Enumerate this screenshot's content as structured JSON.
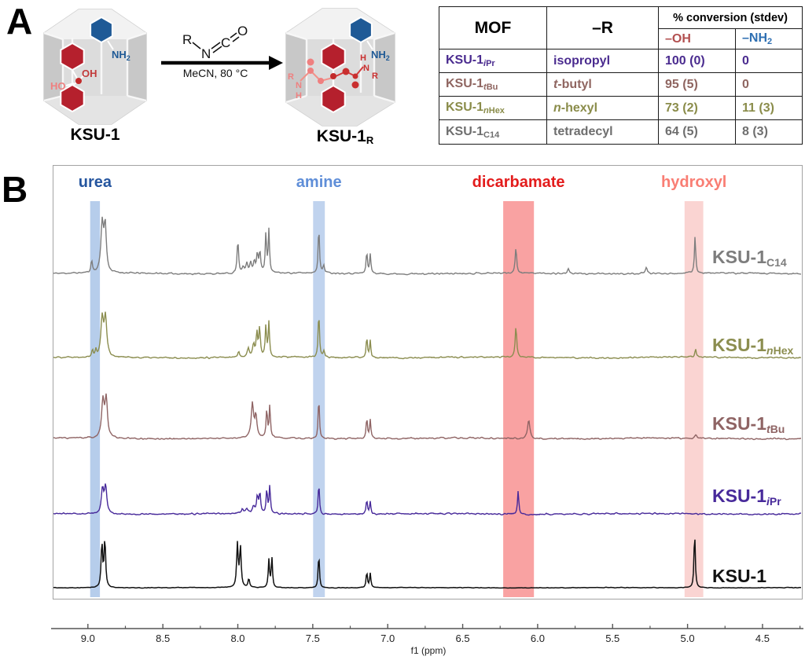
{
  "panel_a": {
    "label": "A",
    "reactant": {
      "name": "KSU-1",
      "oh_label": "OH",
      "ho_label": "HO",
      "nh2_main": "NH",
      "nh2_sub": "2"
    },
    "reaction": {
      "reagent_r": "R",
      "reagent_n": "N",
      "reagent_c": "C",
      "reagent_o": "O",
      "conditions": "MeCN, 80 °C"
    },
    "product": {
      "name_main": "KSU-1",
      "name_sub": "R",
      "nh2_main": "NH",
      "nh2_sub": "2",
      "chain_left": [
        "R",
        "N",
        "H"
      ],
      "chain_right": [
        "H",
        "N",
        "R"
      ]
    },
    "table": {
      "headers": {
        "mof": "MOF",
        "r": "–R",
        "conversion": "% conversion (stdev)",
        "oh": "–OH",
        "nh2_main": "–NH",
        "nh2_sub": "2"
      },
      "header_oh_color": "#b24f4f",
      "header_nh2_color": "#2e6fb2",
      "rows": [
        {
          "mof_main": "KSU-1",
          "sub_italic": "i",
          "sub_rest": "Pr",
          "r_italic": "",
          "r_rest": "isopropyl",
          "oh": "100 (0)",
          "nh2": "0",
          "color": "#4a2b8f"
        },
        {
          "mof_main": "KSU-1",
          "sub_italic": "t",
          "sub_rest": "Bu",
          "r_italic": "t",
          "r_rest": "-butyl",
          "oh": "95 (5)",
          "nh2": "0",
          "color": "#8f6560"
        },
        {
          "mof_main": "KSU-1",
          "sub_italic": "n",
          "sub_rest": "Hex",
          "r_italic": "n",
          "r_rest": "-hexyl",
          "oh": "73 (2)",
          "nh2": "11 (3)",
          "color": "#8a8c4a"
        },
        {
          "mof_main": "KSU-1",
          "sub_italic": "",
          "sub_rest": "C14",
          "r_italic": "",
          "r_rest": "tetradecyl",
          "oh": "64 (5)",
          "nh2": "8 (3)",
          "color": "#6e6e6e"
        }
      ]
    }
  },
  "panel_b": {
    "label": "B",
    "regions": [
      {
        "key": "urea",
        "label": "urea",
        "label_color": "#26569f",
        "band_color": "#b6cdeb",
        "ppm_from": 8.99,
        "ppm_to": 8.925
      },
      {
        "key": "amine",
        "label": "amine",
        "label_color": "#5f8ed8",
        "band_color": "#c0d3ee",
        "ppm_from": 7.503,
        "ppm_to": 7.425
      },
      {
        "key": "dicarbamate",
        "label": "dicarbamate",
        "label_color": "#e31c1c",
        "band_color": "#f9a2a2",
        "ppm_from": 6.235,
        "ppm_to": 6.03
      },
      {
        "key": "hydroxyl",
        "label": "hydroxyl",
        "label_color": "#f97e74",
        "band_color": "#fad4d2",
        "ppm_from": 5.025,
        "ppm_to": 4.9
      }
    ],
    "axis": {
      "label": "f1 (ppm)",
      "major_ticks": [
        9.0,
        8.5,
        8.0,
        7.5,
        7.0,
        6.5,
        6.0,
        5.5,
        5.0,
        4.5
      ],
      "minor_tick_step": 0.25
    }
  },
  "chart_data": {
    "type": "line",
    "title": "Stacked 1H NMR spectra of KSU-1 and modified KSU-1 MOFs",
    "xlabel": "f1 (ppm)",
    "x_range": [
      9.235,
      4.248
    ],
    "x_axis_reversed": true,
    "grid": false,
    "legend_position": "right-inline",
    "series": [
      {
        "label_main": "KSU-1",
        "label_sub_italic": "",
        "label_sub": "C14",
        "color": "#7d7d7d",
        "peaks": [
          [
            8.98,
            15,
            0.006
          ],
          [
            8.91,
            62,
            0.01
          ],
          [
            8.89,
            58,
            0.009
          ],
          [
            8.005,
            42,
            0.006
          ],
          [
            7.97,
            8,
            0.008
          ],
          [
            7.945,
            12,
            0.007
          ],
          [
            7.92,
            13,
            0.007
          ],
          [
            7.895,
            15,
            0.007
          ],
          [
            7.875,
            24,
            0.006
          ],
          [
            7.858,
            27,
            0.006
          ],
          [
            7.818,
            50,
            0.005
          ],
          [
            7.798,
            55,
            0.005
          ],
          [
            7.465,
            60,
            0.005
          ],
          [
            7.432,
            10,
            0.006
          ],
          [
            7.145,
            28,
            0.005
          ],
          [
            7.122,
            25,
            0.005
          ],
          [
            6.15,
            32,
            0.006
          ],
          [
            5.8,
            6,
            0.007
          ],
          [
            5.28,
            8,
            0.007
          ],
          [
            4.955,
            48,
            0.005
          ]
        ]
      },
      {
        "label_main": "KSU-1",
        "label_sub_italic": "n",
        "label_sub": "Hex",
        "color": "#8b8d4f",
        "peaks": [
          [
            8.975,
            9,
            0.005
          ],
          [
            8.952,
            8,
            0.005
          ],
          [
            8.91,
            48,
            0.01
          ],
          [
            8.888,
            50,
            0.01
          ],
          [
            8.0,
            8,
            0.007
          ],
          [
            7.935,
            11,
            0.008
          ],
          [
            7.9,
            15,
            0.008
          ],
          [
            7.878,
            30,
            0.006
          ],
          [
            7.86,
            36,
            0.006
          ],
          [
            7.818,
            40,
            0.005
          ],
          [
            7.798,
            44,
            0.005
          ],
          [
            7.465,
            58,
            0.005
          ],
          [
            7.43,
            8,
            0.006
          ],
          [
            7.145,
            27,
            0.005
          ],
          [
            7.122,
            23,
            0.005
          ],
          [
            6.15,
            40,
            0.006
          ],
          [
            4.952,
            11,
            0.005
          ]
        ]
      },
      {
        "label_main": "KSU-1",
        "label_sub_italic": "t",
        "label_sub": "Bu",
        "color": "#8f6464",
        "peaks": [
          [
            8.905,
            46,
            0.01
          ],
          [
            8.883,
            48,
            0.01
          ],
          [
            7.908,
            44,
            0.009
          ],
          [
            7.885,
            28,
            0.008
          ],
          [
            7.812,
            36,
            0.005
          ],
          [
            7.792,
            41,
            0.005
          ],
          [
            7.465,
            52,
            0.005
          ],
          [
            7.145,
            27,
            0.005
          ],
          [
            7.122,
            24,
            0.005
          ],
          [
            6.065,
            24,
            0.009
          ],
          [
            4.95,
            4,
            0.008
          ]
        ]
      },
      {
        "label_main": "KSU-1",
        "label_sub_italic": "i",
        "label_sub": "Pr",
        "color": "#47299a",
        "peaks": [
          [
            8.908,
            32,
            0.009
          ],
          [
            8.887,
            34,
            0.009
          ],
          [
            7.975,
            6,
            0.007
          ],
          [
            7.945,
            6,
            0.008
          ],
          [
            7.9,
            9,
            0.009
          ],
          [
            7.875,
            21,
            0.006
          ],
          [
            7.858,
            25,
            0.006
          ],
          [
            7.812,
            30,
            0.005
          ],
          [
            7.792,
            35,
            0.005
          ],
          [
            7.465,
            39,
            0.005
          ],
          [
            7.145,
            18,
            0.005
          ],
          [
            7.122,
            16,
            0.005
          ],
          [
            6.135,
            29,
            0.005
          ]
        ]
      },
      {
        "label_main": "KSU-1",
        "label_sub_italic": "",
        "label_sub": "",
        "color": "#111111",
        "peaks": [
          [
            8.912,
            56,
            0.006
          ],
          [
            8.892,
            61,
            0.006
          ],
          [
            8.008,
            55,
            0.006
          ],
          [
            7.988,
            51,
            0.006
          ],
          [
            7.932,
            11,
            0.006
          ],
          [
            7.798,
            35,
            0.005
          ],
          [
            7.778,
            38,
            0.005
          ],
          [
            7.465,
            43,
            0.005
          ],
          [
            7.145,
            20,
            0.005
          ],
          [
            7.122,
            18,
            0.005
          ],
          [
            4.958,
            72,
            0.005
          ]
        ]
      }
    ]
  }
}
